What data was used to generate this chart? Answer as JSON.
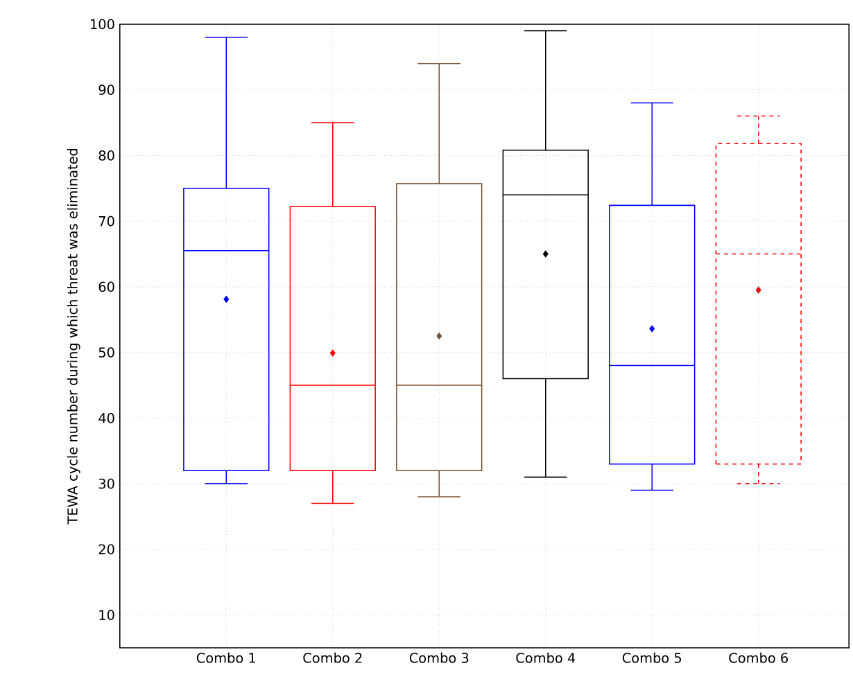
{
  "chart_data": {
    "type": "box",
    "ylabel": "TEWA cycle number during which threat was eliminated",
    "categories": [
      "Combo 1",
      "Combo 2",
      "Combo 3",
      "Combo 4",
      "Combo 5",
      "Combo 6"
    ],
    "ylim": [
      5,
      100
    ],
    "yticks": [
      10,
      20,
      30,
      40,
      50,
      60,
      70,
      80,
      90,
      100
    ],
    "grid": true,
    "marker": "diamond",
    "series": [
      {
        "color": "#0000ff",
        "boxes": [
          {
            "low": 30,
            "q1": 32,
            "median": 65.5,
            "q3": 75,
            "high": 98,
            "mean": 58.1
          },
          null,
          null,
          null,
          null,
          null
        ]
      },
      {
        "color": "#ff0000",
        "boxes": [
          null,
          {
            "low": 27,
            "q1": 32,
            "median": 45,
            "q3": 72.2,
            "high": 85,
            "mean": 49.9
          },
          null,
          null,
          null,
          null
        ]
      },
      {
        "color": "#7b5230",
        "boxes": [
          null,
          null,
          {
            "low": 28,
            "q1": 32,
            "median": 45,
            "q3": 75.7,
            "high": 94,
            "mean": 52.5
          },
          null,
          null,
          null
        ]
      },
      {
        "color": "#000000",
        "boxes": [
          null,
          null,
          null,
          {
            "low": 31,
            "q1": 46,
            "median": 74,
            "q3": 80.8,
            "high": 99,
            "mean": 65
          },
          null,
          null
        ]
      },
      {
        "color": "#0000ff",
        "boxes": [
          null,
          null,
          null,
          null,
          {
            "low": 29,
            "q1": 33,
            "median": 48,
            "q3": 72.4,
            "high": 88,
            "mean": 53.6
          },
          null
        ]
      },
      {
        "color": "#ff0000",
        "line_style": "dashed",
        "boxes": [
          null,
          null,
          null,
          null,
          null,
          {
            "low": 30,
            "q1": 33,
            "median": 65,
            "q3": 81.8,
            "high": 86,
            "mean": 59.5
          }
        ]
      }
    ]
  }
}
